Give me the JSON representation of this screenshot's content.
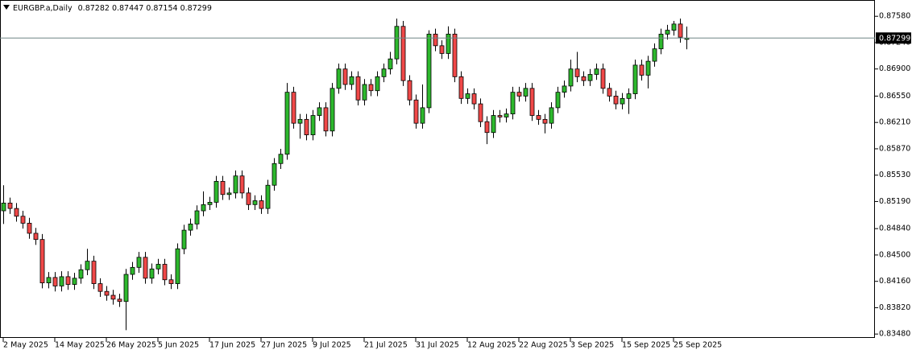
{
  "chart_data": {
    "type": "candlestick",
    "title": "EURGBP.a,Daily",
    "categories": [
      "2 May 2025",
      null,
      null,
      null,
      null,
      null,
      null,
      null,
      "14 May 2025",
      null,
      null,
      null,
      null,
      null,
      null,
      null,
      "26 May 2025",
      null,
      null,
      null,
      null,
      null,
      null,
      null,
      "5 Jun 2025",
      null,
      null,
      null,
      null,
      null,
      null,
      null,
      "17 Jun 2025",
      null,
      null,
      null,
      null,
      null,
      null,
      null,
      "27 Jun 2025",
      null,
      null,
      null,
      null,
      null,
      null,
      null,
      "9 Jul 2025",
      null,
      null,
      null,
      null,
      null,
      null,
      null,
      "21 Jul 2025",
      null,
      null,
      null,
      null,
      null,
      null,
      null,
      "31 Jul 2025",
      null,
      null,
      null,
      null,
      null,
      null,
      null,
      "12 Aug 2025",
      null,
      null,
      null,
      null,
      null,
      null,
      null,
      "22 Aug 2025",
      null,
      null,
      null,
      null,
      null,
      null,
      null,
      "3 Sep 2025",
      null,
      null,
      null,
      null,
      null,
      null,
      null,
      "15 Sep 2025",
      null,
      null,
      null,
      null,
      null,
      null,
      null,
      "25 Sep 2025",
      null,
      null
    ],
    "open": [
      0.8507,
      0.8517,
      0.851,
      0.85,
      0.8491,
      0.8478,
      0.847,
      0.8414,
      0.8421,
      0.841,
      0.8422,
      0.8412,
      0.842,
      0.8431,
      0.8442,
      0.8413,
      0.8403,
      0.8398,
      0.8393,
      0.839,
      0.8425,
      0.8434,
      0.8447,
      0.842,
      0.8432,
      0.8438,
      0.8418,
      0.8413,
      0.8458,
      0.8482,
      0.849,
      0.8507,
      0.8515,
      0.8518,
      0.8545,
      0.8528,
      0.853,
      0.8552,
      0.853,
      0.8515,
      0.852,
      0.851,
      0.854,
      0.8568,
      0.858,
      0.866,
      0.862,
      0.8625,
      0.8605,
      0.863,
      0.864,
      0.861,
      0.8665,
      0.869,
      0.867,
      0.868,
      0.865,
      0.867,
      0.8662,
      0.868,
      0.869,
      0.8703,
      0.8745,
      0.8675,
      0.865,
      0.862,
      0.864,
      0.8735,
      0.872,
      0.871,
      0.8735,
      0.868,
      0.8652,
      0.8658,
      0.8645,
      0.8622,
      0.8608,
      0.863,
      0.8628,
      0.8632,
      0.866,
      0.8655,
      0.8665,
      0.863,
      0.8625,
      0.862,
      0.864,
      0.866,
      0.8668,
      0.869,
      0.868,
      0.8675,
      0.8683,
      0.869,
      0.8665,
      0.8655,
      0.8645,
      0.8652,
      0.8658,
      0.8695,
      0.8682,
      0.87,
      0.8716,
      0.8735,
      0.874,
      0.8748,
      0.87282
    ],
    "high": [
      0.854,
      0.8524,
      0.8517,
      0.8507,
      0.8498,
      0.8485,
      0.8477,
      0.8428,
      0.8428,
      0.8429,
      0.8429,
      0.8427,
      0.8438,
      0.8458,
      0.8449,
      0.842,
      0.841,
      0.8405,
      0.84,
      0.8432,
      0.8441,
      0.8454,
      0.8454,
      0.8439,
      0.8445,
      0.8445,
      0.8425,
      0.8465,
      0.8489,
      0.8497,
      0.8514,
      0.8532,
      0.8525,
      0.8552,
      0.8552,
      0.8537,
      0.8559,
      0.8559,
      0.8537,
      0.8527,
      0.8527,
      0.8547,
      0.8575,
      0.8587,
      0.8672,
      0.8667,
      0.8632,
      0.8632,
      0.8637,
      0.8647,
      0.8647,
      0.8672,
      0.8697,
      0.8697,
      0.8687,
      0.8687,
      0.8677,
      0.8677,
      0.8687,
      0.8697,
      0.8712,
      0.8755,
      0.8752,
      0.8682,
      0.8657,
      0.867,
      0.874,
      0.8742,
      0.8727,
      0.8745,
      0.8742,
      0.8687,
      0.8665,
      0.8665,
      0.8652,
      0.8629,
      0.8637,
      0.8637,
      0.8639,
      0.8667,
      0.8667,
      0.8672,
      0.8672,
      0.8637,
      0.8632,
      0.8647,
      0.8667,
      0.8675,
      0.8702,
      0.8712,
      0.8687,
      0.869,
      0.8697,
      0.8697,
      0.8672,
      0.8662,
      0.8659,
      0.8665,
      0.8702,
      0.8702,
      0.8707,
      0.8723,
      0.8742,
      0.8747,
      0.8752,
      0.8755,
      0.87447
    ],
    "low": [
      0.849,
      0.8503,
      0.8493,
      0.8484,
      0.8471,
      0.8463,
      0.8407,
      0.8407,
      0.8403,
      0.8403,
      0.8405,
      0.8405,
      0.8413,
      0.8424,
      0.8406,
      0.8396,
      0.8391,
      0.8386,
      0.8383,
      0.8353,
      0.8418,
      0.8427,
      0.8413,
      0.8413,
      0.8425,
      0.8411,
      0.8406,
      0.8406,
      0.8451,
      0.8475,
      0.8483,
      0.85,
      0.8508,
      0.8511,
      0.8521,
      0.8521,
      0.8523,
      0.8523,
      0.8508,
      0.8508,
      0.8503,
      0.8503,
      0.8533,
      0.8561,
      0.8573,
      0.8613,
      0.86,
      0.8598,
      0.8598,
      0.8623,
      0.8603,
      0.8603,
      0.8658,
      0.8663,
      0.8663,
      0.8643,
      0.8643,
      0.8655,
      0.8655,
      0.8673,
      0.8683,
      0.8696,
      0.8668,
      0.8643,
      0.8613,
      0.8613,
      0.8633,
      0.8713,
      0.8703,
      0.8703,
      0.8673,
      0.8645,
      0.8645,
      0.8638,
      0.8615,
      0.8593,
      0.8601,
      0.8621,
      0.8621,
      0.8625,
      0.8648,
      0.8648,
      0.8623,
      0.8618,
      0.8607,
      0.8613,
      0.8633,
      0.8653,
      0.8661,
      0.8673,
      0.8668,
      0.8668,
      0.8676,
      0.8658,
      0.8648,
      0.8638,
      0.8638,
      0.8632,
      0.8651,
      0.8675,
      0.8665,
      0.8693,
      0.8709,
      0.8728,
      0.8733,
      0.8724,
      0.87154
    ],
    "close": [
      0.8517,
      0.851,
      0.85,
      0.8491,
      0.8478,
      0.847,
      0.8414,
      0.8421,
      0.841,
      0.8422,
      0.8412,
      0.842,
      0.8431,
      0.8442,
      0.8413,
      0.8403,
      0.8398,
      0.8393,
      0.839,
      0.8425,
      0.8434,
      0.8447,
      0.842,
      0.8432,
      0.8438,
      0.8418,
      0.8413,
      0.8458,
      0.8482,
      0.849,
      0.8507,
      0.8515,
      0.8518,
      0.8545,
      0.8528,
      0.853,
      0.8552,
      0.853,
      0.8515,
      0.852,
      0.851,
      0.854,
      0.8568,
      0.858,
      0.866,
      0.862,
      0.8625,
      0.8605,
      0.863,
      0.864,
      0.861,
      0.8665,
      0.869,
      0.867,
      0.868,
      0.865,
      0.867,
      0.8662,
      0.868,
      0.869,
      0.8703,
      0.8745,
      0.8675,
      0.865,
      0.862,
      0.864,
      0.8735,
      0.872,
      0.871,
      0.8735,
      0.868,
      0.8652,
      0.8658,
      0.8645,
      0.8622,
      0.8608,
      0.863,
      0.8628,
      0.8632,
      0.866,
      0.8655,
      0.8665,
      0.863,
      0.8625,
      0.862,
      0.864,
      0.866,
      0.8668,
      0.869,
      0.868,
      0.8675,
      0.8683,
      0.869,
      0.8665,
      0.8655,
      0.8645,
      0.8652,
      0.8658,
      0.8695,
      0.8682,
      0.87,
      0.8716,
      0.8735,
      0.874,
      0.8748,
      0.8731,
      0.87299
    ],
    "up_color": "#2db82d",
    "down_color": "#f04848",
    "price_line_color": "#6f8585",
    "ylim": [
      0.8343,
      0.8779
    ],
    "yticks": [
      {
        "value": 0.8348,
        "label": "0.83480"
      },
      {
        "value": 0.8382,
        "label": "0.83820"
      },
      {
        "value": 0.8416,
        "label": "0.84160"
      },
      {
        "value": 0.845,
        "label": "0.84500"
      },
      {
        "value": 0.8484,
        "label": "0.84840"
      },
      {
        "value": 0.8519,
        "label": "0.85190"
      },
      {
        "value": 0.8553,
        "label": "0.85530"
      },
      {
        "value": 0.8587,
        "label": "0.85870"
      },
      {
        "value": 0.8621,
        "label": "0.86210"
      },
      {
        "value": 0.8655,
        "label": "0.86550"
      },
      {
        "value": 0.869,
        "label": "0.86900"
      },
      {
        "value": 0.8724,
        "label": "0.87240"
      },
      {
        "value": 0.8758,
        "label": "0.87580"
      }
    ]
  }
}
